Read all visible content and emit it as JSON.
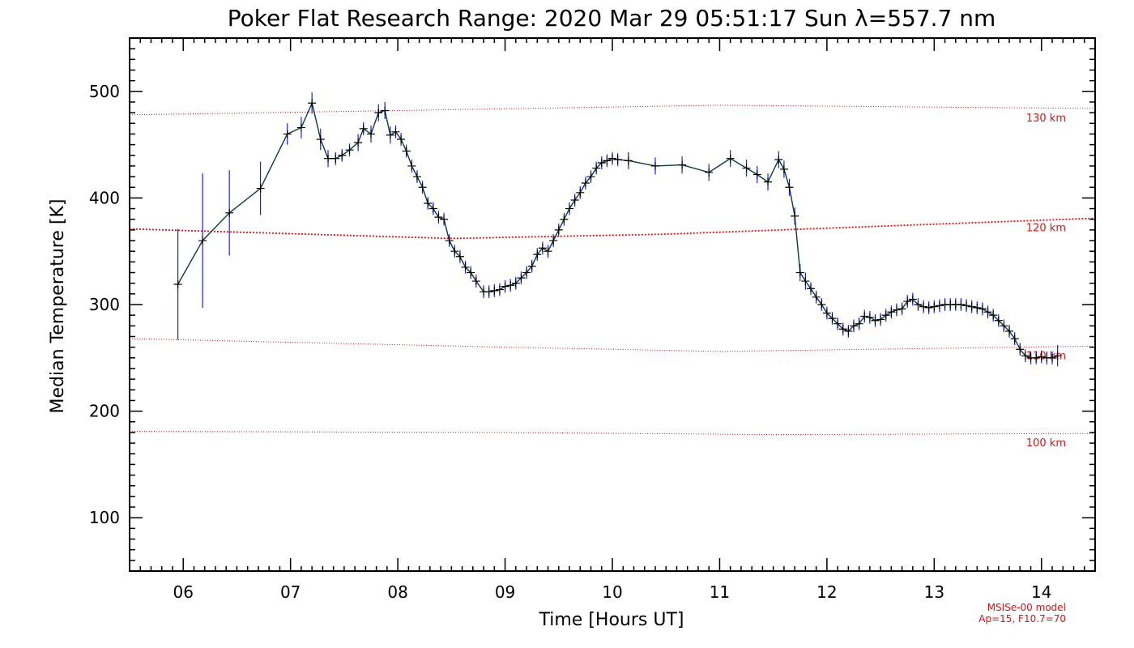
{
  "chart_data": {
    "type": "line",
    "title": "Poker Flat Research Range: 2020 Mar 29 05:51:17 Sun λ=557.7 nm",
    "xlabel": "Time [Hours UT]",
    "ylabel": "Median Temperature [K]",
    "xlim": [
      5.5,
      14.5
    ],
    "ylim": [
      50,
      550
    ],
    "x_ticks": [
      6,
      7,
      8,
      9,
      10,
      11,
      12,
      13,
      14
    ],
    "x_tick_labels": [
      "06",
      "07",
      "08",
      "09",
      "10",
      "11",
      "12",
      "13",
      "14"
    ],
    "y_ticks": [
      100,
      200,
      300,
      400,
      500
    ],
    "y_tick_labels": [
      "100",
      "200",
      "300",
      "400",
      "500"
    ],
    "grid": false,
    "series": [
      {
        "x": [
          5.95,
          6.18,
          6.43,
          6.72,
          6.97,
          7.1,
          7.2,
          7.28,
          7.35,
          7.42,
          7.48,
          7.55,
          7.63,
          7.68,
          7.75,
          7.82,
          7.88,
          7.93,
          7.98,
          8.03,
          8.08,
          8.13,
          8.18,
          8.23,
          8.28,
          8.33,
          8.38,
          8.43,
          8.48,
          8.53,
          8.58,
          8.63,
          8.68,
          8.73,
          8.8,
          8.85,
          8.9,
          8.95,
          9.0,
          9.05,
          9.1,
          9.15,
          9.2,
          9.25,
          9.3,
          9.35,
          9.4,
          9.45,
          9.5,
          9.55,
          9.6,
          9.65,
          9.7,
          9.75,
          9.8,
          9.85,
          9.9,
          9.95,
          10.0,
          10.05,
          10.15,
          10.4,
          10.65,
          10.9,
          11.1,
          11.25,
          11.35,
          11.45,
          11.55,
          11.6,
          11.65,
          11.7,
          11.75,
          11.8,
          11.85,
          11.9,
          11.95,
          12.0,
          12.05,
          12.1,
          12.15,
          12.2,
          12.25,
          12.3,
          12.35,
          12.4,
          12.45,
          12.5,
          12.55,
          12.6,
          12.65,
          12.7,
          12.75,
          12.8,
          12.85,
          12.9,
          12.95,
          13.0,
          13.05,
          13.1,
          13.15,
          13.2,
          13.25,
          13.3,
          13.35,
          13.4,
          13.45,
          13.5,
          13.55,
          13.6,
          13.65,
          13.7,
          13.75,
          13.8,
          13.85,
          13.9,
          13.95,
          14.0,
          14.05,
          14.1,
          14.15
        ],
        "values": [
          319,
          360,
          386,
          409,
          460,
          466,
          489,
          455,
          437,
          437,
          440,
          445,
          452,
          465,
          460,
          480,
          482,
          459,
          462,
          455,
          444,
          430,
          420,
          410,
          395,
          390,
          382,
          380,
          360,
          350,
          345,
          335,
          330,
          322,
          312,
          312,
          313,
          314,
          317,
          318,
          320,
          325,
          330,
          336,
          347,
          353,
          350,
          360,
          370,
          380,
          390,
          398,
          405,
          414,
          420,
          428,
          433,
          435,
          437,
          436,
          435,
          430,
          431,
          424,
          437,
          428,
          422,
          415,
          436,
          427,
          410,
          383,
          330,
          322,
          315,
          307,
          300,
          292,
          287,
          282,
          277,
          275,
          280,
          282,
          289,
          288,
          285,
          286,
          290,
          293,
          295,
          296,
          303,
          305,
          300,
          298,
          297,
          298,
          299,
          300,
          300,
          300,
          300,
          299,
          298,
          297,
          296,
          293,
          290,
          285,
          280,
          275,
          268,
          258,
          252,
          250,
          250,
          251,
          250,
          250,
          252
        ],
        "errors": [
          52,
          63,
          40,
          25,
          10,
          10,
          10,
          10,
          8,
          6,
          6,
          6,
          8,
          6,
          8,
          8,
          8,
          8,
          6,
          6,
          6,
          6,
          6,
          6,
          6,
          6,
          6,
          6,
          6,
          6,
          6,
          6,
          6,
          6,
          6,
          6,
          6,
          6,
          6,
          6,
          6,
          6,
          6,
          6,
          6,
          6,
          6,
          6,
          6,
          6,
          6,
          6,
          6,
          6,
          6,
          6,
          6,
          6,
          6,
          6,
          8,
          8,
          8,
          8,
          8,
          8,
          8,
          8,
          8,
          8,
          8,
          8,
          8,
          8,
          6,
          6,
          6,
          6,
          6,
          6,
          6,
          6,
          6,
          6,
          6,
          6,
          6,
          6,
          6,
          6,
          6,
          6,
          6,
          6,
          6,
          6,
          6,
          6,
          6,
          6,
          6,
          6,
          6,
          6,
          6,
          6,
          6,
          6,
          6,
          6,
          6,
          6,
          6,
          6,
          6,
          6,
          6,
          6,
          6,
          6,
          10
        ]
      }
    ],
    "reference_lines": [
      {
        "label": "130 km",
        "x": [
          5.5,
          8,
          11,
          14.5
        ],
        "values": [
          478,
          482,
          487,
          484
        ]
      },
      {
        "label": "120 km",
        "x": [
          5.5,
          8.5,
          10.5,
          14.5
        ],
        "values": [
          371,
          362,
          366,
          381
        ]
      },
      {
        "label": "110 km",
        "x": [
          5.5,
          9,
          11,
          14.5
        ],
        "values": [
          268,
          260,
          256,
          261
        ]
      },
      {
        "label": "100 km",
        "x": [
          5.5,
          9,
          11.5,
          14.5
        ],
        "values": [
          181,
          180,
          178,
          179
        ]
      }
    ],
    "annotation_lines": [
      "MSISe-00 model",
      "Ap=15, F10.7=70"
    ],
    "colors": {
      "line": "#0b3b3b",
      "marker": "#000000",
      "errorbar": "#1a1aff",
      "reference": "#e01010"
    }
  }
}
